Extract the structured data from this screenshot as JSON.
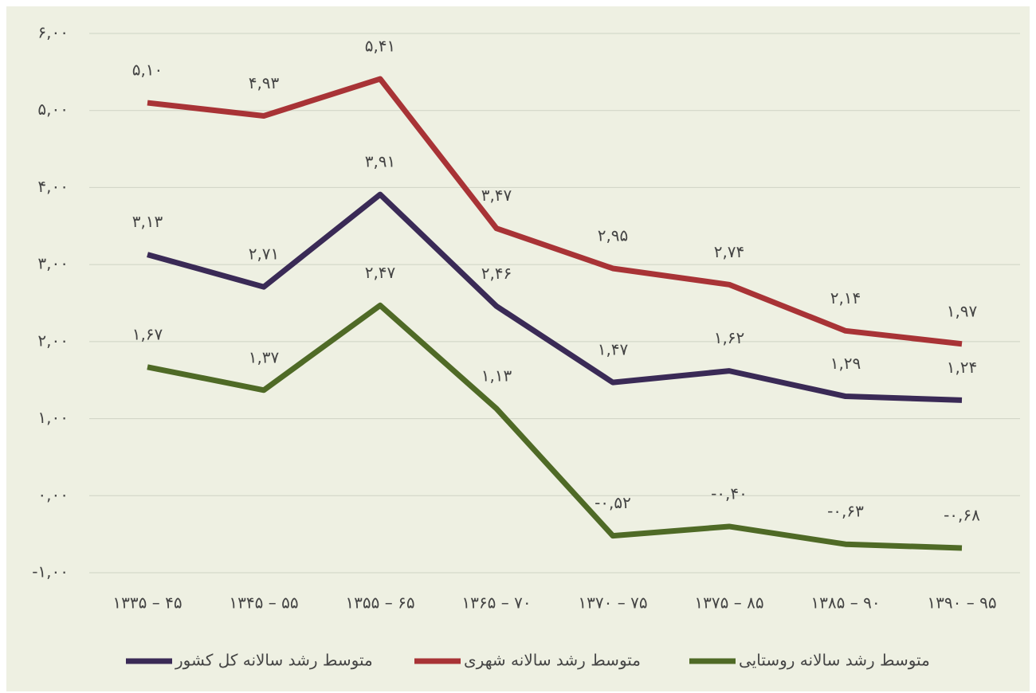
{
  "chart_data": {
    "type": "line",
    "categories": [
      "۱۳۳۵ – ۴۵",
      "۱۳۴۵ – ۵۵",
      "۱۳۵۵ – ۶۵",
      "۱۳۶۵ – ۷۰",
      "۱۳۷۰ – ۷۵",
      "۱۳۷۵ – ۸۵",
      "۱۳۸۵ – ۹۰",
      "۱۳۹۰ – ۹۵"
    ],
    "series": [
      {
        "name": "متوسط رشد سالانه کل کشور",
        "color": "#3a2a56",
        "values": [
          3.13,
          2.71,
          3.91,
          2.46,
          1.47,
          1.62,
          1.29,
          1.24
        ],
        "value_labels": [
          "۳,۱۳",
          "۲,۷۱",
          "۳,۹۱",
          "۲,۴۶",
          "۱,۴۷",
          "۱,۶۲",
          "۱,۲۹",
          "۱,۲۴"
        ]
      },
      {
        "name": "متوسط رشد سالانه  شهری",
        "color": "#a83336",
        "values": [
          5.1,
          4.93,
          5.41,
          3.47,
          2.95,
          2.74,
          2.14,
          1.97
        ],
        "value_labels": [
          "۵,۱۰",
          "۴,۹۳",
          "۵,۴۱",
          "۳,۴۷",
          "۲,۹۵",
          "۲,۷۴",
          "۲,۱۴",
          "۱,۹۷"
        ]
      },
      {
        "name": "متوسط رشد سالانه روستایی",
        "color": "#4f6a26",
        "values": [
          1.67,
          1.37,
          2.47,
          1.13,
          -0.52,
          -0.4,
          -0.63,
          -0.68
        ],
        "value_labels": [
          "۱,۶۷",
          "۱,۳۷",
          "۲,۴۷",
          "۱,۱۳",
          "-۰,۵۲",
          "-۰,۴۰",
          "-۰,۶۳",
          "-۰,۶۸"
        ]
      }
    ],
    "ylim": [
      -1,
      6
    ],
    "yticks": [
      {
        "value": -1,
        "label": "-۱,۰۰"
      },
      {
        "value": 0,
        "label": "۰,۰۰"
      },
      {
        "value": 1,
        "label": "۱,۰۰"
      },
      {
        "value": 2,
        "label": "۲,۰۰"
      },
      {
        "value": 3,
        "label": "۳,۰۰"
      },
      {
        "value": 4,
        "label": "۴,۰۰"
      },
      {
        "value": 5,
        "label": "۵,۰۰"
      },
      {
        "value": 6,
        "label": "۶,۰۰"
      }
    ],
    "grid": true,
    "legend": "bottom"
  }
}
